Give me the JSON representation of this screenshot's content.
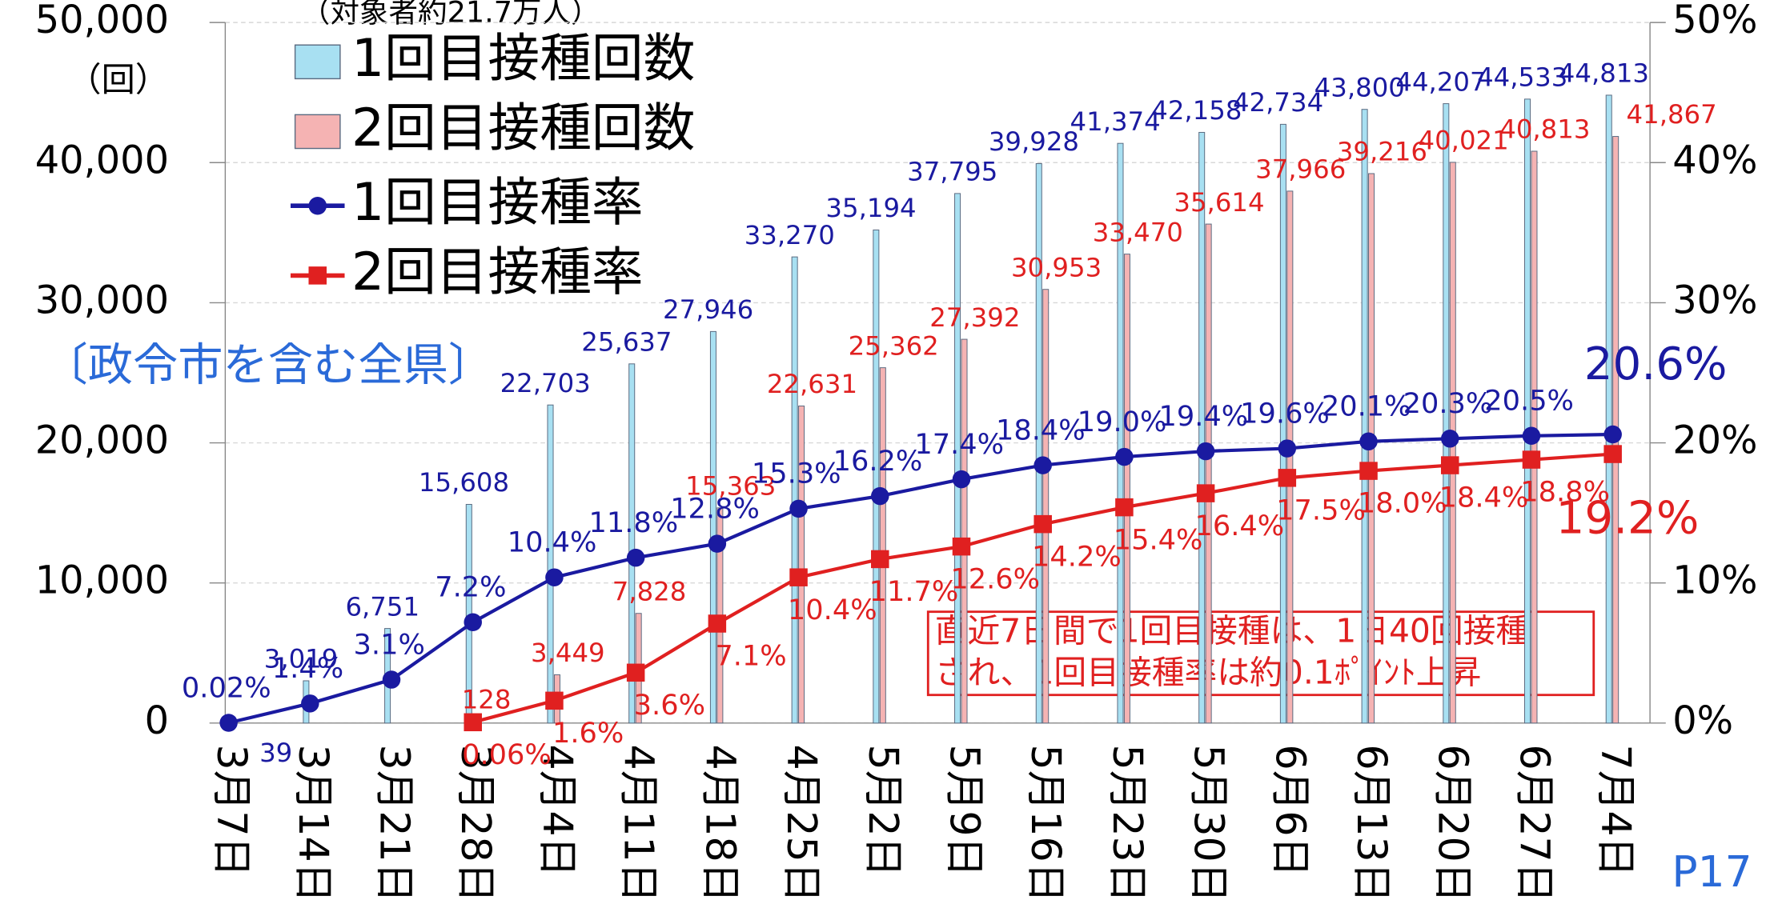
{
  "chart_data": {
    "type": "bar-line",
    "subtitle": "（対象者約21.7万人）",
    "y_unit": "（回）",
    "region_note": "〔政令市を含む全県〕",
    "annotation": [
      "直近7日間で1回目接種は、1日40回接種",
      "され、1回目接種率は約0.1ﾎﾟｲﾝﾄ上昇"
    ],
    "page_number": "P17",
    "categories": [
      "3月7日",
      "3月14日",
      "3月21日",
      "3月28日",
      "4月4日",
      "4月11日",
      "4月18日",
      "4月25日",
      "5月2日",
      "5月9日",
      "5月16日",
      "5月23日",
      "5月30日",
      "6月6日",
      "6月13日",
      "6月20日",
      "6月27日",
      "7月4日"
    ],
    "series": [
      {
        "name": "1回目接種回数",
        "type": "bar",
        "color": "#a8e0f2",
        "values": [
          39,
          3019,
          6751,
          15608,
          22703,
          25637,
          27946,
          33270,
          35194,
          37795,
          39928,
          41374,
          42158,
          42734,
          43800,
          44207,
          44533,
          44813
        ],
        "value_labels": [
          "39",
          "3,019",
          "6,751",
          "15,608",
          "22,703",
          "25,637",
          "27,946",
          "33,270",
          "35,194",
          "37,795",
          "39,928",
          "41,374",
          "42,158",
          "42,734",
          "43,800",
          "44,207",
          "44,533",
          "44,813"
        ],
        "label_color": "#1a1aa0"
      },
      {
        "name": "2回目接種回数",
        "type": "bar",
        "color": "#f5b3b3",
        "values": [
          null,
          null,
          null,
          128,
          3449,
          7828,
          15363,
          22631,
          25362,
          27392,
          30953,
          33470,
          35614,
          37966,
          39216,
          40021,
          40813,
          41867
        ],
        "value_labels": [
          null,
          null,
          null,
          "128",
          "3,449",
          "7,828",
          "15,363",
          "22,631",
          "25,362",
          "27,392",
          "30,953",
          "33,470",
          "35,614",
          "37,966",
          "39,216",
          "40,021",
          "40,813",
          "41,867"
        ],
        "label_color": "#e02020"
      },
      {
        "name": "1回目接種率",
        "type": "line",
        "axis": "y2",
        "color": "#1a1aa0",
        "marker": "circle",
        "values": [
          0.02,
          1.4,
          3.1,
          7.2,
          10.4,
          11.8,
          12.8,
          15.3,
          16.2,
          17.4,
          18.4,
          19.0,
          19.4,
          19.6,
          20.1,
          20.3,
          20.5,
          20.6
        ],
        "value_labels": [
          "0.02%",
          "1.4%",
          "3.1%",
          "7.2%",
          "10.4%",
          "11.8%",
          "12.8%",
          "15.3%",
          "16.2%",
          "17.4%",
          "18.4%",
          "19.0%",
          "19.4%",
          "19.6%",
          "20.1%",
          "20.3%",
          "20.5%",
          "20.6%"
        ]
      },
      {
        "name": "2回目接種率",
        "type": "line",
        "axis": "y2",
        "color": "#e02020",
        "marker": "square",
        "values": [
          null,
          null,
          null,
          0.06,
          1.6,
          3.6,
          7.1,
          10.4,
          11.7,
          12.6,
          14.2,
          15.4,
          16.4,
          17.5,
          18.0,
          18.4,
          18.8,
          19.2
        ],
        "value_labels": [
          null,
          null,
          null,
          "0.06%",
          "1.6%",
          "3.6%",
          "7.1%",
          "10.4%",
          "11.7%",
          "12.6%",
          "14.2%",
          "15.4%",
          "16.4%",
          "17.5%",
          "18.0%",
          "18.4%",
          "18.8%",
          "19.2%"
        ]
      }
    ],
    "ylim": [
      0,
      50000
    ],
    "yticks": [
      0,
      {
        "value": 10000,
        "label": "10,000"
      },
      {
        "value": 20000,
        "label": "20,000"
      },
      {
        "value": 30000,
        "label": "30,000"
      },
      {
        "value": 40000,
        "label": "40,000"
      },
      {
        "value": 50000,
        "label": "50,000"
      }
    ],
    "y2lim": [
      0,
      50
    ],
    "y2ticks": [
      {
        "value": 0,
        "label": "0%"
      },
      {
        "value": 10,
        "label": "10%"
      },
      {
        "value": 20,
        "label": "20%"
      },
      {
        "value": 30,
        "label": "30%"
      },
      {
        "value": 40,
        "label": "40%"
      },
      {
        "value": 50,
        "label": "50%"
      }
    ],
    "grid": true
  }
}
